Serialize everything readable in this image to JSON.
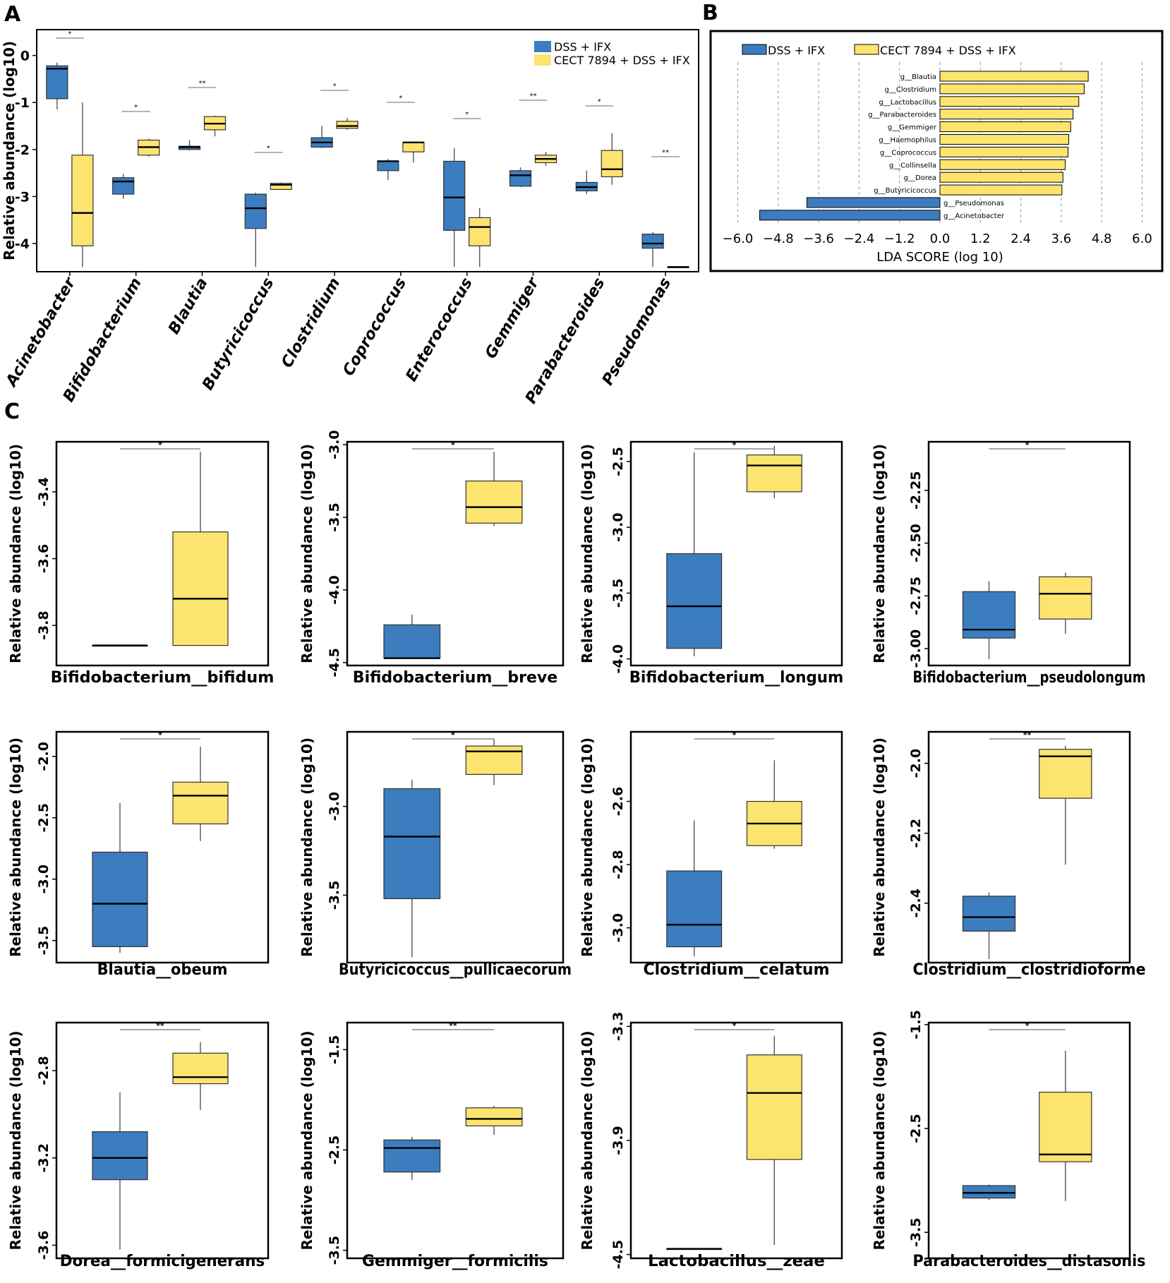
{
  "colors": {
    "dss_ifx": "#3b7dbf",
    "cect": "#fde46f",
    "frame": "#000000",
    "sig_line": "#888888"
  },
  "panel_a": {
    "letter": "A"
  },
  "panel_b": {
    "letter": "B"
  },
  "panel_c": {
    "letter": "C"
  },
  "chart_data": [
    {
      "id": "A",
      "type": "box",
      "ylabel": "Relative abundance (log10)",
      "ylim": [
        -4.6,
        0.55
      ],
      "yticks": [
        "0",
        "-1",
        "-2",
        "-3",
        "-4"
      ],
      "legend": [
        "DSS + IFX",
        "CECT  7894 + DSS + IFX"
      ],
      "legend_position": "top-right",
      "categories": [
        "Acinetobacter",
        "Bifidobacterium",
        "Blautia",
        "Butyricicoccus",
        "Clostridium",
        "Coprococcus",
        "Enterococcus",
        "Gemmiger",
        "Parabacteroides",
        "Pseudomonas"
      ],
      "significance": [
        "*",
        "*",
        "**",
        "*",
        "*",
        "*",
        "*",
        "**",
        "*",
        "**"
      ],
      "series": [
        {
          "name": "DSS + IFX",
          "boxes": [
            [
              -1.15,
              -0.92,
              -0.28,
              -0.22,
              -0.15
            ],
            [
              -3.05,
              -2.95,
              -2.68,
              -2.6,
              -2.52
            ],
            [
              -2.02,
              -2.0,
              -1.95,
              -1.93,
              -1.8
            ],
            [
              -4.5,
              -3.68,
              -3.25,
              -2.95,
              -2.92
            ],
            [
              -1.97,
              -1.95,
              -1.85,
              -1.75,
              -1.5
            ],
            [
              -2.65,
              -2.45,
              -2.25,
              -2.25,
              -2.2
            ],
            [
              -4.5,
              -3.72,
              -3.02,
              -2.25,
              -1.97
            ],
            [
              -2.8,
              -2.78,
              -2.55,
              -2.45,
              -2.38
            ],
            [
              -2.95,
              -2.88,
              -2.8,
              -2.7,
              -2.45
            ],
            [
              -4.5,
              -4.1,
              -4.0,
              -3.8,
              -3.76
            ]
          ]
        },
        {
          "name": "CECT  7894 + DSS + IFX",
          "boxes": [
            [
              -4.5,
              -4.05,
              -3.35,
              -2.12,
              -1.0
            ],
            [
              -2.15,
              -2.12,
              -1.95,
              -1.8,
              -1.77
            ],
            [
              -1.72,
              -1.58,
              -1.45,
              -1.3,
              -1.28
            ],
            [
              -2.85,
              -2.85,
              -2.75,
              -2.72,
              -2.7
            ],
            [
              -1.58,
              -1.55,
              -1.5,
              -1.4,
              -1.33
            ],
            [
              -2.28,
              -2.05,
              -1.85,
              -1.85,
              -1.83
            ],
            [
              -4.5,
              -4.05,
              -3.65,
              -3.45,
              -3.25
            ],
            [
              -2.35,
              -2.28,
              -2.2,
              -2.12,
              -2.05
            ],
            [
              -2.75,
              -2.58,
              -2.42,
              -2.02,
              -1.65
            ],
            [
              -4.5,
              -4.5,
              -4.5,
              -4.5,
              -4.5
            ]
          ]
        }
      ]
    },
    {
      "id": "B",
      "type": "bar",
      "xlabel": "LDA SCORE (log 10)",
      "xlim": [
        -6.0,
        6.0
      ],
      "xticks": [
        "−6.0",
        "−4.8",
        "−3.6",
        "−2.4",
        "−1.2",
        "0.0",
        "1.2",
        "2.4",
        "3.6",
        "4.8",
        "6.0"
      ],
      "legend": [
        "DSS + IFX",
        "CECT  7894 + DSS + IFX"
      ],
      "categories": [
        "g__Blautia",
        "g__Clostridium",
        "g__Lactobacillus",
        "g__Parabacteroides",
        "g__Gemmiger",
        "g__Haemophilus",
        "g__Coprococcus",
        "g__Collinsella",
        "g__Dorea",
        "g__Butyricicoccus",
        "g__Pseudomonas",
        "g__Acinetobacter"
      ],
      "values": [
        4.4,
        4.28,
        4.12,
        3.95,
        3.88,
        3.82,
        3.8,
        3.72,
        3.65,
        3.62,
        -3.95,
        -5.35
      ],
      "groups": [
        1,
        1,
        1,
        1,
        1,
        1,
        1,
        1,
        1,
        1,
        0,
        0
      ]
    },
    {
      "id": "C1",
      "type": "box",
      "xlabel": "Bifidobacterium__bifidum",
      "ylabel": "Relative abundance (log10)",
      "ylim": [
        -3.92,
        -3.25
      ],
      "yticks": [
        -3.4,
        -3.6,
        -3.8
      ],
      "ytick_labels": [
        "-3.4",
        "-3.6",
        "-3.8"
      ],
      "sig": "*",
      "boxes": [
        [
          -3.86,
          -3.86,
          -3.86,
          -3.86,
          -3.86
        ],
        [
          -3.86,
          -3.86,
          -3.72,
          -3.52,
          -3.28
        ]
      ]
    },
    {
      "id": "C2",
      "type": "box",
      "xlabel": "Bifidobacterium__breve",
      "ylabel": "Relative abundance (log10)",
      "ylim": [
        -4.52,
        -2.98
      ],
      "yticks": [
        -3.0,
        -3.5,
        -4.0,
        -4.5
      ],
      "ytick_labels": [
        "-3.0",
        "-3.5",
        "-4.0",
        "-4.5"
      ],
      "sig": "*",
      "boxes": [
        [
          -4.47,
          -4.47,
          -4.47,
          -4.24,
          -4.17
        ],
        [
          -3.56,
          -3.54,
          -3.43,
          -3.25,
          -3.05
        ]
      ]
    },
    {
      "id": "C3",
      "type": "box",
      "xlabel": "Bifidobacterium__longum",
      "ylabel": "Relative abundance (log10)",
      "ylim": [
        -4.05,
        -2.35
      ],
      "yticks": [
        -2.5,
        -3.0,
        -3.5,
        -4.0
      ],
      "ytick_labels": [
        "-2.5",
        "-3.0",
        "-3.5",
        "-4.0"
      ],
      "sig": "*",
      "boxes": [
        [
          -3.98,
          -3.92,
          -3.6,
          -3.2,
          -2.43
        ],
        [
          -2.78,
          -2.73,
          -2.53,
          -2.45,
          -2.38
        ]
      ]
    },
    {
      "id": "C4",
      "type": "box",
      "xlabel": "Bifidobacterium__pseudolongum",
      "ylabel": "Relative abundance (log10)",
      "ylim": [
        -3.08,
        -2.02
      ],
      "yticks": [
        -2.25,
        -2.5,
        -2.75,
        -3.0
      ],
      "ytick_labels": [
        "-2.25",
        "-2.50",
        "-2.75",
        "-3.00"
      ],
      "sig": "*",
      "boxes": [
        [
          -3.05,
          -2.95,
          -2.91,
          -2.73,
          -2.68
        ],
        [
          -2.93,
          -2.86,
          -2.74,
          -2.66,
          -2.64
        ]
      ]
    },
    {
      "id": "C5",
      "type": "box",
      "xlabel": "Blautia__obeum",
      "ylabel": "Relative abundance (log10)",
      "ylim": [
        -3.68,
        -1.8
      ],
      "yticks": [
        -2.0,
        -2.5,
        -3.0,
        -3.5
      ],
      "ytick_labels": [
        "-2.0",
        "-2.5",
        "-3.0",
        "-3.5"
      ],
      "sig": "*",
      "boxes": [
        [
          -3.6,
          -3.55,
          -3.2,
          -2.78,
          -2.38
        ],
        [
          -2.69,
          -2.55,
          -2.32,
          -2.21,
          -1.92
        ]
      ]
    },
    {
      "id": "C6",
      "type": "box",
      "xlabel": "Butyricicoccus__pullicaecorum",
      "ylabel": "Relative abundance (log10)",
      "ylim": [
        -3.88,
        -2.58
      ],
      "yticks": [
        -3.0,
        -3.5
      ],
      "ytick_labels": [
        "-3.0",
        "-3.5"
      ],
      "sig": "*",
      "boxes": [
        [
          -3.85,
          -3.52,
          -3.17,
          -2.9,
          -2.85
        ],
        [
          -2.88,
          -2.82,
          -2.69,
          -2.66,
          -2.62
        ]
      ]
    },
    {
      "id": "C7",
      "type": "box",
      "xlabel": "Clostridium__celatum",
      "ylabel": "Relative abundance (log10)",
      "ylim": [
        -3.11,
        -2.38
      ],
      "yticks": [
        -2.6,
        -2.8,
        -3.0
      ],
      "ytick_labels": [
        "-2.6",
        "-2.8",
        "-3.0"
      ],
      "sig": "*",
      "boxes": [
        [
          -3.09,
          -3.06,
          -2.99,
          -2.82,
          -2.66
        ],
        [
          -2.75,
          -2.74,
          -2.67,
          -2.6,
          -2.47
        ]
      ]
    },
    {
      "id": "C8",
      "type": "box",
      "xlabel": "Clostridium__clostridioforme",
      "ylabel": "Relative abundance (log10)",
      "ylim": [
        -2.57,
        -1.91
      ],
      "yticks": [
        -2.0,
        -2.2,
        -2.4
      ],
      "ytick_labels": [
        "-2.0",
        "-2.2",
        "-2.4"
      ],
      "sig": "**",
      "boxes": [
        [
          -2.56,
          -2.48,
          -2.44,
          -2.38,
          -2.37
        ],
        [
          -2.29,
          -2.1,
          -1.98,
          -1.96,
          -1.95
        ]
      ]
    },
    {
      "id": "C9",
      "type": "box",
      "xlabel": "Dorea__formicigenerans",
      "ylabel": "Relative abundance (log10)",
      "ylim": [
        -3.66,
        -2.58
      ],
      "yticks": [
        -2.8,
        -3.2,
        -3.6
      ],
      "ytick_labels": [
        "-2.8",
        "-3.2",
        "-3.6"
      ],
      "sig": "**",
      "boxes": [
        [
          -3.62,
          -3.3,
          -3.2,
          -3.08,
          -2.9
        ],
        [
          -2.98,
          -2.86,
          -2.83,
          -2.72,
          -2.67
        ]
      ]
    },
    {
      "id": "C10",
      "type": "box",
      "xlabel": "Gemmiger__formicilis",
      "ylabel": "Relative abundance (log10)",
      "ylim": [
        -3.58,
        -1.23
      ],
      "yticks": [
        -1.5,
        -2.5,
        -3.5
      ],
      "ytick_labels": [
        "-1.5",
        "-2.5",
        "-3.5"
      ],
      "sig": "**",
      "boxes": [
        [
          -2.8,
          -2.72,
          -2.48,
          -2.4,
          -2.37
        ],
        [
          -2.35,
          -2.26,
          -2.19,
          -2.08,
          -2.06
        ]
      ]
    },
    {
      "id": "C11",
      "type": "box",
      "xlabel": "Lactobacillus__zeae",
      "ylabel": "Relative abundance (log10)",
      "ylim": [
        -4.52,
        -3.28
      ],
      "yticks": [
        -3.3,
        -3.9,
        -4.5
      ],
      "ytick_labels": [
        "-3.3",
        "-3.9",
        "-4.5"
      ],
      "sig": "*",
      "boxes": [
        [
          -4.47,
          -4.47,
          -4.47,
          -4.47,
          -4.47
        ],
        [
          -4.45,
          -4.0,
          -3.65,
          -3.45,
          -3.35
        ]
      ]
    },
    {
      "id": "C12",
      "type": "box",
      "xlabel": "Parabacteroides__distasonis",
      "ylabel": "Relative abundance (log10)",
      "ylim": [
        -3.75,
        -1.48
      ],
      "yticks": [
        -1.5,
        -2.5,
        -3.5
      ],
      "ytick_labels": [
        "-1.5",
        "-2.5",
        "-3.5"
      ],
      "sig": "*",
      "boxes": [
        [
          -3.19,
          -3.17,
          -3.12,
          -3.05,
          -3.04
        ],
        [
          -3.2,
          -2.82,
          -2.75,
          -2.15,
          -1.75
        ]
      ]
    }
  ]
}
